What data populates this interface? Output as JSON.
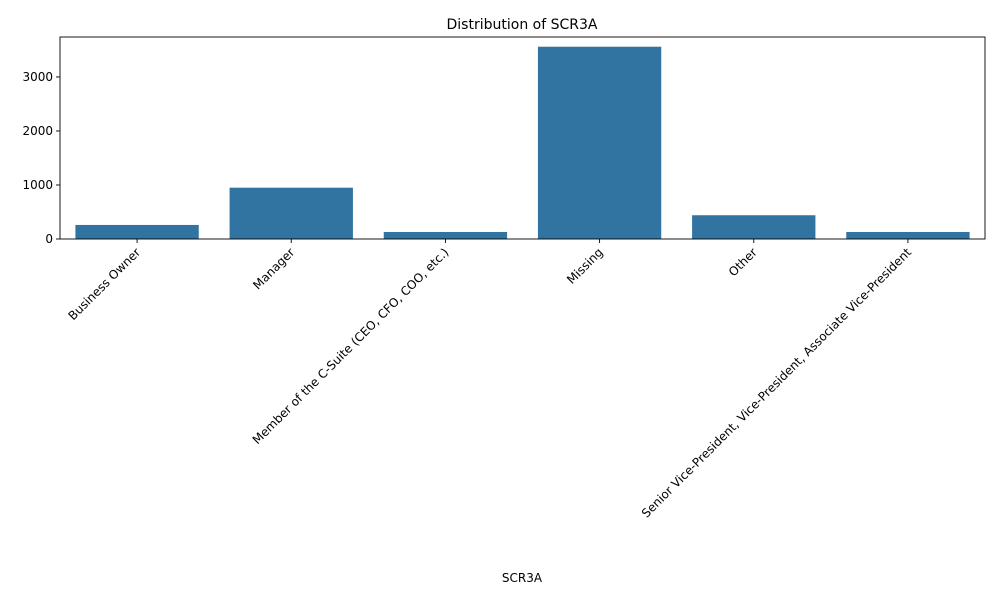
{
  "chart_data": {
    "type": "bar",
    "title": "Distribution of SCR3A",
    "xlabel": "SCR3A",
    "ylabel": "",
    "categories": [
      "Business Owner",
      "Manager",
      "Member of the C-Suite (CEO, CFO, COO, etc.)",
      "Missing",
      "Other",
      "Senior Vice-President, Vice-President, Associate Vice-President"
    ],
    "values": [
      260,
      950,
      130,
      3560,
      440,
      130
    ],
    "ylim": [
      0,
      3740
    ],
    "yticks": [
      0,
      1000,
      2000,
      3000
    ],
    "grid": false,
    "legend": "none",
    "bar_color": "#3274a1"
  }
}
